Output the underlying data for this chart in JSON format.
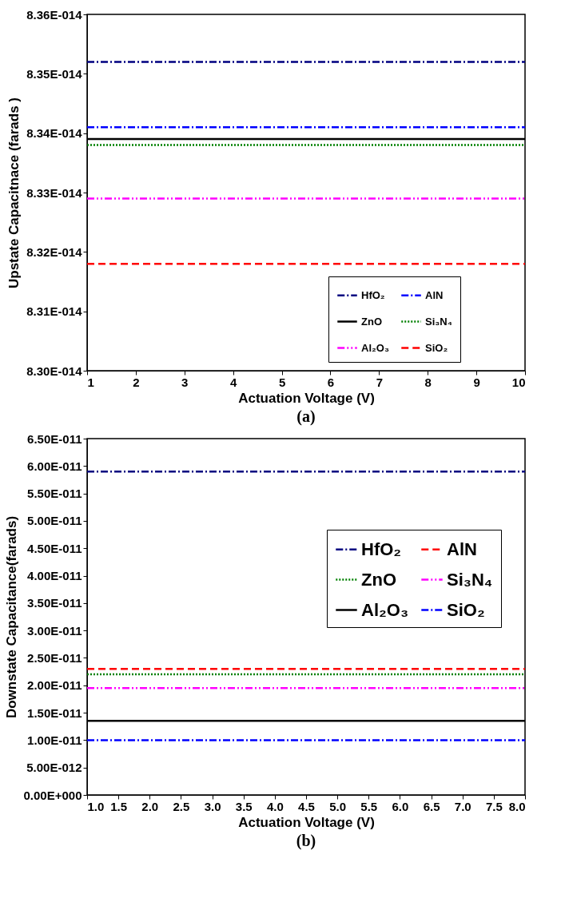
{
  "chart_data": [
    {
      "type": "line",
      "xlabel": "Actuation Voltage (V)",
      "ylabel": "Upstate Capacitnace (farads )",
      "annotations": [
        "(a)"
      ],
      "x": [
        1,
        10
      ],
      "xlim": [
        1,
        10
      ],
      "xticks": [
        1,
        2,
        3,
        4,
        5,
        6,
        7,
        8,
        9,
        10
      ],
      "ylim": [
        8.3e-14,
        8.36e-14
      ],
      "yticks": [
        {
          "value": 8.3e-14,
          "label": "8.30E-014"
        },
        {
          "value": 8.31e-14,
          "label": "8.31E-014"
        },
        {
          "value": 8.32e-14,
          "label": "8.32E-014"
        },
        {
          "value": 8.33e-14,
          "label": "8.33E-014"
        },
        {
          "value": 8.34e-14,
          "label": "8.34E-014"
        },
        {
          "value": 8.35e-14,
          "label": "8.35E-014"
        },
        {
          "value": 8.36e-14,
          "label": "8.36E-014"
        }
      ],
      "grid": false,
      "legend": "bottom right",
      "marker": "none",
      "series": [
        {
          "name": "HfO₂",
          "color": "#000080",
          "line_style": "dashdot",
          "values": [
            8.352e-14,
            8.352e-14
          ]
        },
        {
          "name": "AlN",
          "color": "#0000ff",
          "line_style": "dashdot",
          "values": [
            8.341e-14,
            8.341e-14
          ]
        },
        {
          "name": "ZnO",
          "color": "#000000",
          "line_style": "solid",
          "values": [
            8.339e-14,
            8.339e-14
          ]
        },
        {
          "name": "Si₃N₄",
          "color": "#008000",
          "line_style": "dotted",
          "values": [
            8.338e-14,
            8.338e-14
          ]
        },
        {
          "name": "Al₂O₃",
          "color": "#ff00ff",
          "line_style": "dashdotdot",
          "values": [
            8.329e-14,
            8.329e-14
          ]
        },
        {
          "name": "SiO₂",
          "color": "#ff0000",
          "line_style": "dashed",
          "values": [
            8.318e-14,
            8.318e-14
          ]
        }
      ]
    },
    {
      "type": "line",
      "xlabel": "Actuation Voltage (V)",
      "ylabel": "Downstate Capacitance(farads)",
      "annotations": [
        "(b)"
      ],
      "x": [
        1,
        8
      ],
      "xlim": [
        1,
        8
      ],
      "xticks": [
        {
          "value": 1,
          "label": "1.0"
        },
        1.5,
        {
          "value": 2,
          "label": "2.0"
        },
        2.5,
        {
          "value": 3,
          "label": "3.0"
        },
        3.5,
        {
          "value": 4,
          "label": "4.0"
        },
        4.5,
        {
          "value": 5,
          "label": "5.0"
        },
        5.5,
        {
          "value": 6,
          "label": "6.0"
        },
        6.5,
        {
          "value": 7,
          "label": "7.0"
        },
        7.5,
        {
          "value": 8,
          "label": "8.0"
        }
      ],
      "ylim": [
        0,
        6.5e-11
      ],
      "yticks": [
        {
          "value": 0,
          "label": "0.00E+000"
        },
        {
          "value": 5e-12,
          "label": "5.00E-012"
        },
        {
          "value": 1e-11,
          "label": "1.00E-011"
        },
        {
          "value": 1.5e-11,
          "label": "1.50E-011"
        },
        {
          "value": 2e-11,
          "label": "2.00E-011"
        },
        {
          "value": 2.5e-11,
          "label": "2.50E-011"
        },
        {
          "value": 3e-11,
          "label": "3.00E-011"
        },
        {
          "value": 3.5e-11,
          "label": "3.50E-011"
        },
        {
          "value": 4e-11,
          "label": "4.00E-011"
        },
        {
          "value": 4.5e-11,
          "label": "4.50E-011"
        },
        {
          "value": 5e-11,
          "label": "5.00E-011"
        },
        {
          "value": 5.5e-11,
          "label": "5.50E-011"
        },
        {
          "value": 6e-11,
          "label": "6.00E-011"
        },
        {
          "value": 6.5e-11,
          "label": "6.50E-011"
        }
      ],
      "grid": false,
      "legend": "right",
      "marker": "none",
      "series": [
        {
          "name": "HfO₂",
          "color": "#000080",
          "line_style": "dashdot",
          "values": [
            5.9e-11,
            5.9e-11
          ]
        },
        {
          "name": "AlN",
          "color": "#ff0000",
          "line_style": "dashed",
          "values": [
            2.3e-11,
            2.3e-11
          ]
        },
        {
          "name": "ZnO",
          "color": "#008000",
          "line_style": "dotted",
          "values": [
            2.2e-11,
            2.2e-11
          ]
        },
        {
          "name": "Si₃N₄",
          "color": "#ff00ff",
          "line_style": "dashdotdot",
          "values": [
            1.95e-11,
            1.95e-11
          ]
        },
        {
          "name": "Al₂O₃",
          "color": "#000000",
          "line_style": "solid",
          "values": [
            1.35e-11,
            1.35e-11
          ]
        },
        {
          "name": "SiO₂",
          "color": "#0000ff",
          "line_style": "dashdot",
          "values": [
            1e-11,
            1e-11
          ]
        }
      ]
    }
  ]
}
